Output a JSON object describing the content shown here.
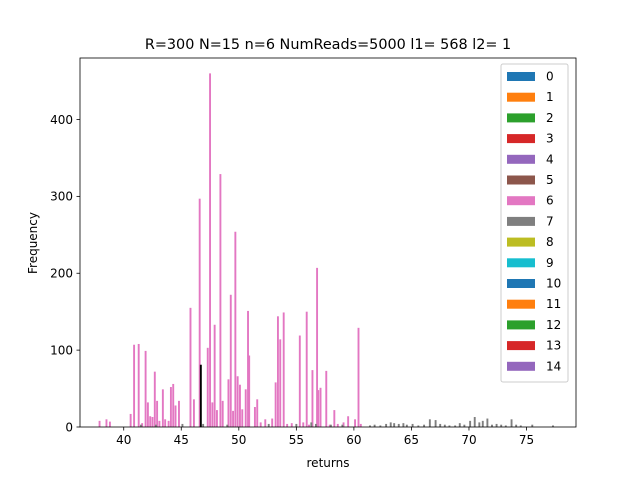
{
  "chart_data": {
    "type": "bar",
    "title": "R=300 N=15 n=6 NumReads=5000 l1= 568 l2= 1",
    "xlabel": "returns",
    "ylabel": "Frequency",
    "xlim": [
      36.2,
      79.3
    ],
    "ylim": [
      0,
      480
    ],
    "xticks": [
      40,
      45,
      50,
      55,
      60,
      65,
      70,
      75
    ],
    "yticks": [
      0,
      100,
      200,
      300,
      400
    ],
    "grid": false,
    "legend_position": "top-right",
    "legend": [
      {
        "label": "0",
        "color": "#1f77b4"
      },
      {
        "label": "1",
        "color": "#ff7f0e"
      },
      {
        "label": "2",
        "color": "#2ca02c"
      },
      {
        "label": "3",
        "color": "#d62728"
      },
      {
        "label": "4",
        "color": "#9467bd"
      },
      {
        "label": "5",
        "color": "#8c564b"
      },
      {
        "label": "6",
        "color": "#e377c2"
      },
      {
        "label": "7",
        "color": "#7f7f7f"
      },
      {
        "label": "8",
        "color": "#bcbd22"
      },
      {
        "label": "9",
        "color": "#17becf"
      },
      {
        "label": "10",
        "color": "#1f77b4"
      },
      {
        "label": "11",
        "color": "#ff7f0e"
      },
      {
        "label": "12",
        "color": "#2ca02c"
      },
      {
        "label": "13",
        "color": "#d62728"
      },
      {
        "label": "14",
        "color": "#9467bd"
      }
    ],
    "series": [
      {
        "name": "6",
        "color": "#e377c2",
        "points": [
          [
            37.9,
            8
          ],
          [
            38.5,
            10
          ],
          [
            38.8,
            7
          ],
          [
            40.6,
            17
          ],
          [
            40.9,
            107
          ],
          [
            41.3,
            108
          ],
          [
            41.6,
            5
          ],
          [
            41.9,
            99
          ],
          [
            42.1,
            32
          ],
          [
            42.3,
            14
          ],
          [
            42.5,
            13
          ],
          [
            42.7,
            72
          ],
          [
            42.9,
            34
          ],
          [
            43.1,
            8
          ],
          [
            43.4,
            49
          ],
          [
            43.6,
            10
          ],
          [
            43.9,
            8
          ],
          [
            44.1,
            52
          ],
          [
            44.3,
            56
          ],
          [
            44.5,
            28
          ],
          [
            44.8,
            34
          ],
          [
            45.8,
            155
          ],
          [
            46.1,
            36
          ],
          [
            46.6,
            297
          ],
          [
            47.3,
            103
          ],
          [
            47.5,
            460
          ],
          [
            47.7,
            32
          ],
          [
            47.9,
            133
          ],
          [
            48.1,
            22
          ],
          [
            48.4,
            329
          ],
          [
            48.6,
            34
          ],
          [
            49.1,
            62
          ],
          [
            49.3,
            172
          ],
          [
            49.5,
            21
          ],
          [
            49.7,
            254
          ],
          [
            49.9,
            66
          ],
          [
            50.1,
            55
          ],
          [
            50.3,
            23
          ],
          [
            50.6,
            49
          ],
          [
            50.8,
            151
          ],
          [
            50.9,
            93
          ],
          [
            51.4,
            26
          ],
          [
            51.6,
            36
          ],
          [
            51.9,
            6
          ],
          [
            52.3,
            10
          ],
          [
            52.9,
            11
          ],
          [
            53.2,
            58
          ],
          [
            53.4,
            144
          ],
          [
            53.6,
            114
          ],
          [
            53.9,
            149
          ],
          [
            54.2,
            4
          ],
          [
            54.6,
            5
          ],
          [
            55.3,
            119
          ],
          [
            55.6,
            6
          ],
          [
            55.9,
            150
          ],
          [
            56.1,
            3
          ],
          [
            56.4,
            74
          ],
          [
            56.8,
            207
          ],
          [
            56.9,
            48
          ],
          [
            57.1,
            51
          ],
          [
            57.6,
            73
          ],
          [
            57.9,
            3
          ],
          [
            58.3,
            22
          ],
          [
            58.6,
            4
          ],
          [
            59.1,
            6
          ],
          [
            59.5,
            14
          ],
          [
            60.1,
            10
          ],
          [
            60.4,
            129
          ],
          [
            60.6,
            4
          ]
        ]
      },
      {
        "name": "7",
        "color": "#7f7f7f",
        "points": [
          [
            41.5,
            3
          ],
          [
            42.8,
            3
          ],
          [
            45.1,
            4
          ],
          [
            46.9,
            4
          ],
          [
            49.0,
            3
          ],
          [
            52.6,
            4
          ],
          [
            55.0,
            4
          ],
          [
            56.3,
            6
          ],
          [
            56.7,
            4
          ],
          [
            58.0,
            3
          ],
          [
            59.0,
            3
          ],
          [
            61.4,
            2
          ],
          [
            61.8,
            3
          ],
          [
            62.3,
            2
          ],
          [
            62.8,
            4
          ],
          [
            63.2,
            6
          ],
          [
            63.5,
            5
          ],
          [
            63.9,
            4
          ],
          [
            64.3,
            5
          ],
          [
            64.6,
            3
          ],
          [
            65.1,
            4
          ],
          [
            65.6,
            2
          ],
          [
            66.1,
            3
          ],
          [
            66.6,
            10
          ],
          [
            67.1,
            9
          ],
          [
            67.5,
            4
          ],
          [
            67.9,
            3
          ],
          [
            68.3,
            2
          ],
          [
            68.8,
            2
          ],
          [
            69.2,
            5
          ],
          [
            69.6,
            3
          ],
          [
            70.1,
            8
          ],
          [
            70.5,
            13
          ],
          [
            70.9,
            6
          ],
          [
            71.2,
            8
          ],
          [
            71.6,
            11
          ],
          [
            72.0,
            3
          ],
          [
            72.4,
            4
          ],
          [
            72.8,
            3
          ],
          [
            73.2,
            2
          ],
          [
            73.7,
            10
          ],
          [
            74.1,
            3
          ],
          [
            74.5,
            2
          ],
          [
            75.5,
            3
          ],
          [
            77.3,
            2
          ]
        ]
      },
      {
        "name": "",
        "color": "#000000",
        "points": [
          [
            46.7,
            81
          ]
        ]
      }
    ]
  }
}
